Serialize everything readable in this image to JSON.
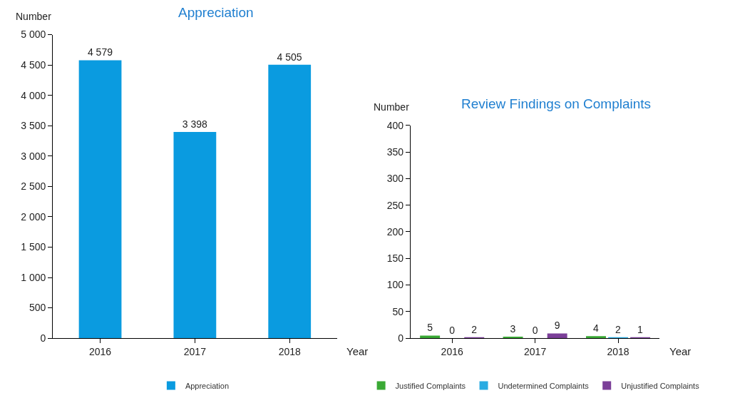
{
  "chart_data": [
    {
      "type": "bar",
      "title": "Appreciation",
      "xlabel": "Year",
      "ylabel": "Number",
      "categories": [
        "2016",
        "2017",
        "2018"
      ],
      "series": [
        {
          "name": "Appreciation",
          "color": "#0a9be0",
          "values": [
            4579,
            3398,
            4505
          ],
          "value_labels": [
            "4 579",
            "3 398",
            "4 505"
          ]
        }
      ],
      "ylim": [
        0,
        5000
      ],
      "yticks": [
        0,
        500,
        {
          "value": 1000,
          "label": "1 000"
        },
        {
          "value": 1500,
          "label": "1 500"
        },
        {
          "value": 2000,
          "label": "2 000"
        },
        {
          "value": 2500,
          "label": "2 500"
        },
        {
          "value": 3000,
          "label": "3 000"
        },
        {
          "value": 3500,
          "label": "3 500"
        },
        {
          "value": 4000,
          "label": "4 000"
        },
        {
          "value": 4500,
          "label": "4 500"
        },
        {
          "value": 5000,
          "label": "5 000"
        }
      ],
      "legend": "bottom"
    },
    {
      "type": "bar",
      "title": "Review Findings on Complaints",
      "xlabel": "Year",
      "ylabel": "Number",
      "categories": [
        "2016",
        "2017",
        "2018"
      ],
      "series": [
        {
          "name": "Justified Complaints",
          "color": "#3aa935",
          "values": [
            5,
            3,
            4
          ]
        },
        {
          "name": "Undetermined Complaints",
          "color": "#29abe2",
          "values": [
            0,
            0,
            2
          ]
        },
        {
          "name": "Unjustified Complaints",
          "color": "#7b3f98",
          "values": [
            2,
            9,
            1
          ]
        }
      ],
      "ylim": [
        0,
        400
      ],
      "yticks": [
        0,
        50,
        100,
        150,
        200,
        250,
        300,
        350,
        400
      ],
      "data_labels": true,
      "legend": "bottom"
    }
  ]
}
